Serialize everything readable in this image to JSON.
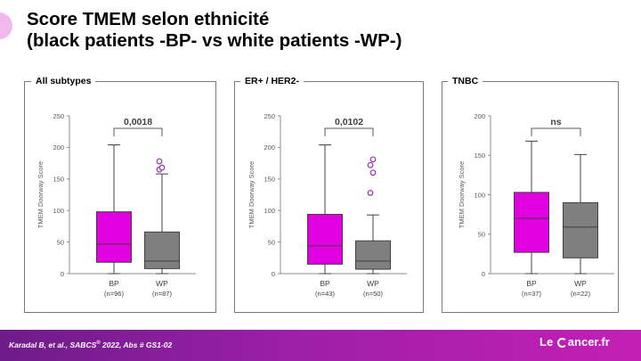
{
  "title": {
    "line1": "Score TMEM selon ethnicité",
    "line2": "(black patients -BP- vs white patients -WP-)"
  },
  "footer": {
    "reference": "Karadal B, et al., SABCS",
    "reference_sup": "®",
    "reference_tail": " 2022, Abs # GS1-02",
    "logo_pre": "Le",
    "logo_post": "ancer.fr"
  },
  "colors": {
    "bp_box": "#e000e0",
    "wp_box": "#7f7f7f",
    "outlier": "#9b2fae",
    "footer_accent": "#9c1fa8"
  },
  "chart_data": [
    {
      "type": "boxplot",
      "title": "All subtypes",
      "ylabel": "TMEM Doorway Score",
      "ylim": [
        0,
        250
      ],
      "yticks": [
        0,
        50,
        100,
        150,
        200,
        250
      ],
      "comparison_label": "0,0018",
      "groups": [
        {
          "label": "BP",
          "n_label": "(n=96)",
          "color": "#e000e0",
          "min": 0,
          "q1": 18,
          "median": 47,
          "q3": 98,
          "max": 204,
          "outliers": []
        },
        {
          "label": "WP",
          "n_label": "(n=87)",
          "color": "#7f7f7f",
          "min": 0,
          "q1": 8,
          "median": 20,
          "q3": 66,
          "max": 158,
          "outliers": [
            165,
            168,
            178
          ]
        }
      ]
    },
    {
      "type": "boxplot",
      "title": "ER+ / HER2-",
      "ylabel": "TMEM Doorway Score",
      "ylim": [
        0,
        250
      ],
      "yticks": [
        0,
        50,
        100,
        150,
        200,
        250
      ],
      "comparison_label": "0,0102",
      "groups": [
        {
          "label": "BP",
          "n_label": "(n=43)",
          "color": "#e000e0",
          "min": 0,
          "q1": 15,
          "median": 44,
          "q3": 94,
          "max": 204,
          "outliers": []
        },
        {
          "label": "WP",
          "n_label": "(n=50)",
          "color": "#7f7f7f",
          "min": 0,
          "q1": 7,
          "median": 20,
          "q3": 52,
          "max": 93,
          "outliers": [
            128,
            160,
            172,
            181
          ]
        }
      ]
    },
    {
      "type": "boxplot",
      "title": "TNBC",
      "ylabel": "TMEM Doorway Score",
      "ylim": [
        0,
        200
      ],
      "yticks": [
        0,
        50,
        100,
        150,
        200
      ],
      "comparison_label": "ns",
      "groups": [
        {
          "label": "BP",
          "n_label": "(n=37)",
          "color": "#e000e0",
          "min": 0,
          "q1": 27,
          "median": 70,
          "q3": 103,
          "max": 168,
          "outliers": []
        },
        {
          "label": "WP",
          "n_label": "(n=22)",
          "color": "#7f7f7f",
          "min": 0,
          "q1": 20,
          "median": 59,
          "q3": 90,
          "max": 151,
          "outliers": []
        }
      ]
    }
  ]
}
